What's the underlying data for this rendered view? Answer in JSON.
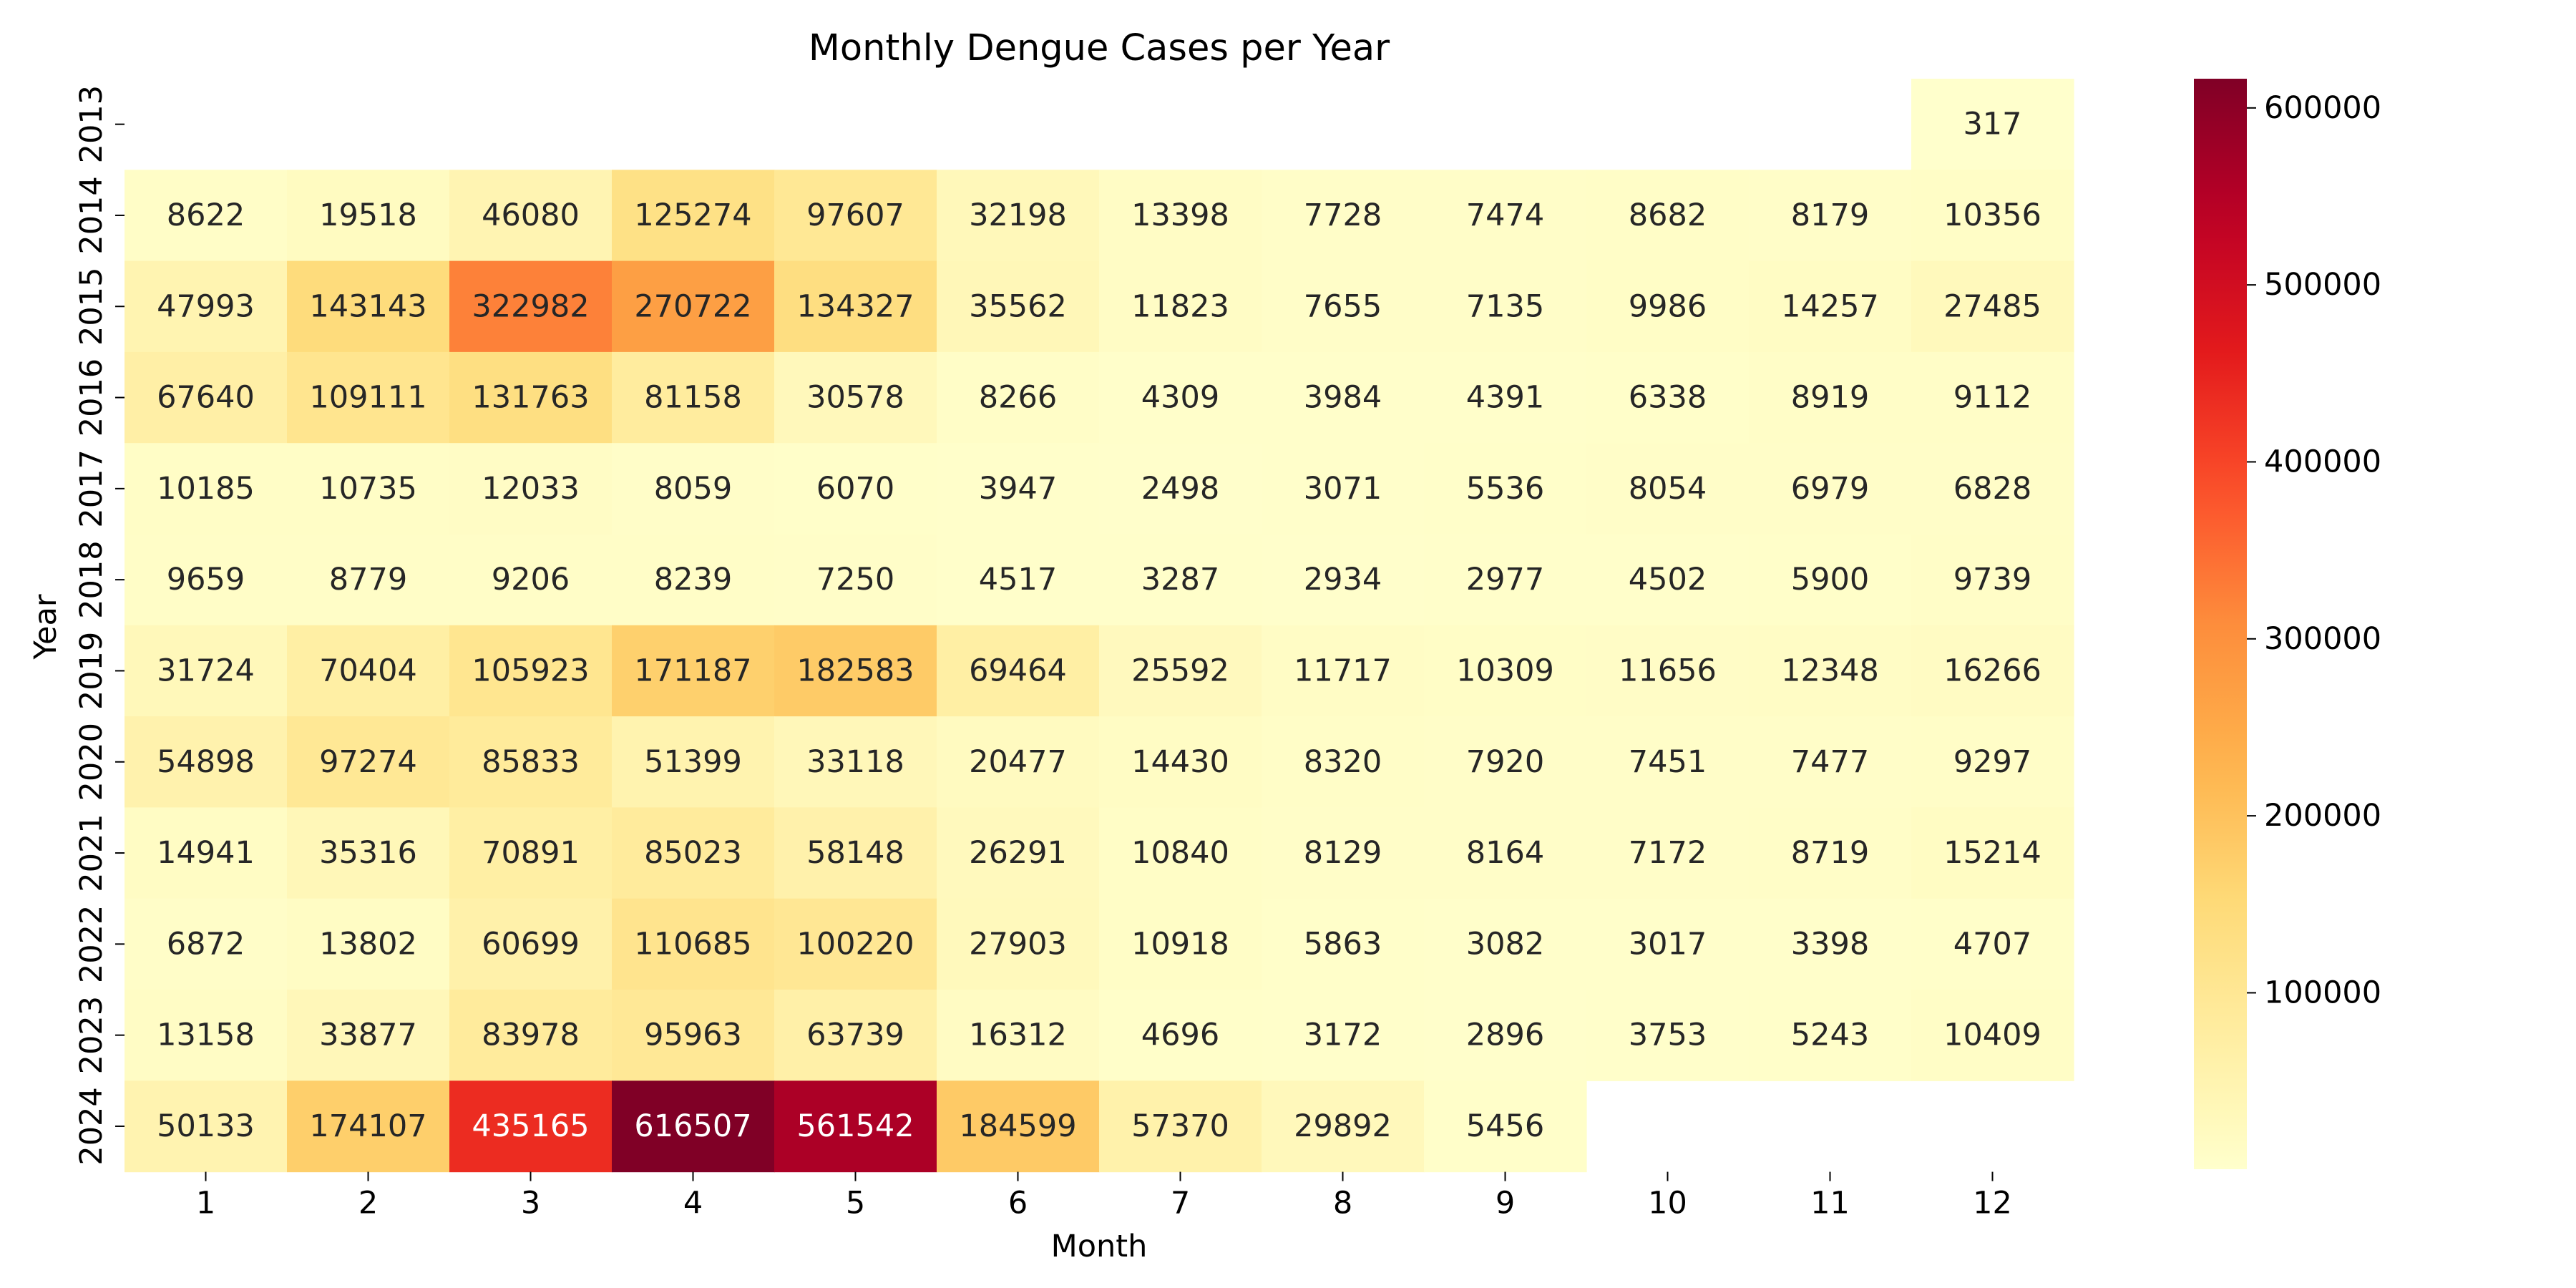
{
  "chart_data": {
    "type": "heatmap",
    "title": "Monthly Dengue Cases per Year",
    "xlabel": "Month",
    "ylabel": "Year",
    "x_categories": [
      "1",
      "2",
      "3",
      "4",
      "5",
      "6",
      "7",
      "8",
      "9",
      "10",
      "11",
      "12"
    ],
    "y_categories": [
      "2013",
      "2014",
      "2015",
      "2016",
      "2017",
      "2018",
      "2019",
      "2020",
      "2021",
      "2022",
      "2023",
      "2024"
    ],
    "values": [
      [
        null,
        null,
        null,
        null,
        null,
        null,
        null,
        null,
        null,
        null,
        null,
        317
      ],
      [
        8622,
        19518,
        46080,
        125274,
        97607,
        32198,
        13398,
        7728,
        7474,
        8682,
        8179,
        10356
      ],
      [
        47993,
        143143,
        322982,
        270722,
        134327,
        35562,
        11823,
        7655,
        7135,
        9986,
        14257,
        27485
      ],
      [
        67640,
        109111,
        131763,
        81158,
        30578,
        8266,
        4309,
        3984,
        4391,
        6338,
        8919,
        9112
      ],
      [
        10185,
        10735,
        12033,
        8059,
        6070,
        3947,
        2498,
        3071,
        5536,
        8054,
        6979,
        6828
      ],
      [
        9659,
        8779,
        9206,
        8239,
        7250,
        4517,
        3287,
        2934,
        2977,
        4502,
        5900,
        9739
      ],
      [
        31724,
        70404,
        105923,
        171187,
        182583,
        69464,
        25592,
        11717,
        10309,
        11656,
        12348,
        16266
      ],
      [
        54898,
        97274,
        85833,
        51399,
        33118,
        20477,
        14430,
        8320,
        7920,
        7451,
        7477,
        9297
      ],
      [
        14941,
        35316,
        70891,
        85023,
        58148,
        26291,
        10840,
        8129,
        8164,
        7172,
        8719,
        15214
      ],
      [
        6872,
        13802,
        60699,
        110685,
        100220,
        27903,
        10918,
        5863,
        3082,
        3017,
        3398,
        4707
      ],
      [
        13158,
        33877,
        83978,
        95963,
        63739,
        16312,
        4696,
        3172,
        2896,
        3753,
        5243,
        10409
      ],
      [
        50133,
        174107,
        435165,
        616507,
        561542,
        184599,
        57370,
        29892,
        5456,
        null,
        null,
        null
      ]
    ],
    "colorscale": "YlOrRd",
    "colorbar": {
      "min": 317,
      "max": 616507,
      "ticks": [
        100000,
        200000,
        300000,
        400000,
        500000,
        600000
      ],
      "tick_labels": [
        "100000",
        "200000",
        "300000",
        "400000",
        "500000",
        "600000"
      ]
    },
    "annotate_cells": true,
    "grid": false,
    "legend": "colorbar-right"
  }
}
